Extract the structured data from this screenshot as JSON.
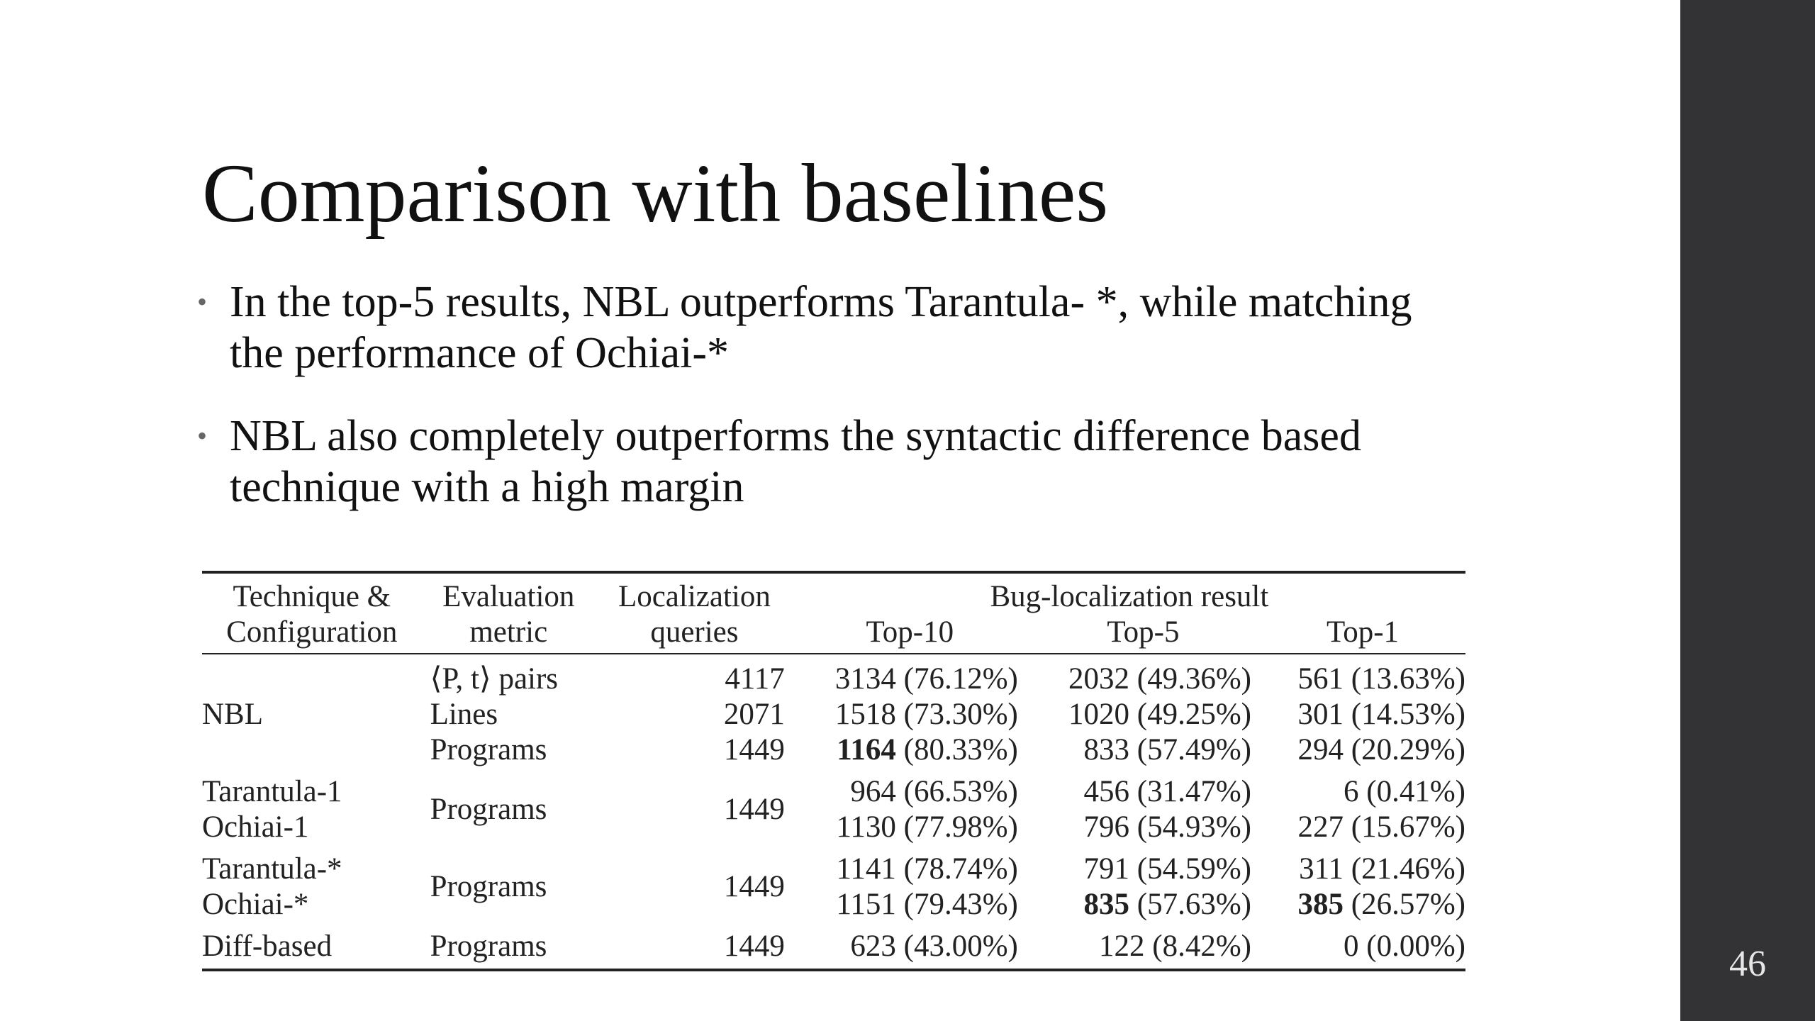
{
  "title": "Comparison with baselines",
  "bullets": [
    "In the top-5 results, NBL outperforms Tarantula- *, while matching the performance of Ochiai-*",
    "NBL also completely outperforms the syntactic difference based technique with a high margin"
  ],
  "table": {
    "header": {
      "technique_line1": "Technique &",
      "technique_line2": "Configuration",
      "metric_line1": "Evaluation",
      "metric_line2": "metric",
      "queries_line1": "Localization",
      "queries_line2": "queries",
      "result_group": "Bug-localization result",
      "top10": "Top-10",
      "top5": "Top-5",
      "top1": "Top-1"
    },
    "nbl": {
      "technique": "NBL",
      "rows": [
        {
          "metric": "⟨P, t⟩ pairs",
          "queries": "4117",
          "top10_count": "3134",
          "top10_pct": "(76.12%)",
          "top5": "2032 (49.36%)",
          "top1": "561 (13.63%)"
        },
        {
          "metric": "Lines",
          "queries": "2071",
          "top10_count": "1518",
          "top10_pct": "(73.30%)",
          "top5": "1020 (49.25%)",
          "top1": "301 (14.53%)"
        },
        {
          "metric": "Programs",
          "queries": "1449",
          "top10_count": "1164",
          "top10_pct": "(80.33%)",
          "top5": "833 (57.49%)",
          "top1": "294 (20.29%)"
        }
      ]
    },
    "group1": {
      "metric": "Programs",
      "queries": "1449",
      "rows": [
        {
          "technique": "Tarantula-1",
          "top10": "964 (66.53%)",
          "top5": "456 (31.47%)",
          "top1": "6 (0.41%)"
        },
        {
          "technique": "Ochiai-1",
          "top10": "1130 (77.98%)",
          "top5": "796 (54.93%)",
          "top1": "227 (15.67%)"
        }
      ]
    },
    "group2": {
      "metric": "Programs",
      "queries": "1449",
      "rows": [
        {
          "technique": "Tarantula-*",
          "top10": "1141 (78.74%)",
          "top5_count": "791",
          "top5_pct": "(54.59%)",
          "top1_count": "311",
          "top1_pct": "(21.46%)"
        },
        {
          "technique": "Ochiai-*",
          "top10": "1151 (79.43%)",
          "top5_count": "835",
          "top5_pct": "(57.63%)",
          "top1_count": "385",
          "top1_pct": "(26.57%)"
        }
      ]
    },
    "diff": {
      "technique": "Diff-based",
      "metric": "Programs",
      "queries": "1449",
      "top10": "623 (43.00%)",
      "top5": "122 (8.42%)",
      "top1": "0 (0.00%)"
    }
  },
  "page_number": "46",
  "colors": {
    "side_bar": "#333335",
    "text": "#111111"
  }
}
